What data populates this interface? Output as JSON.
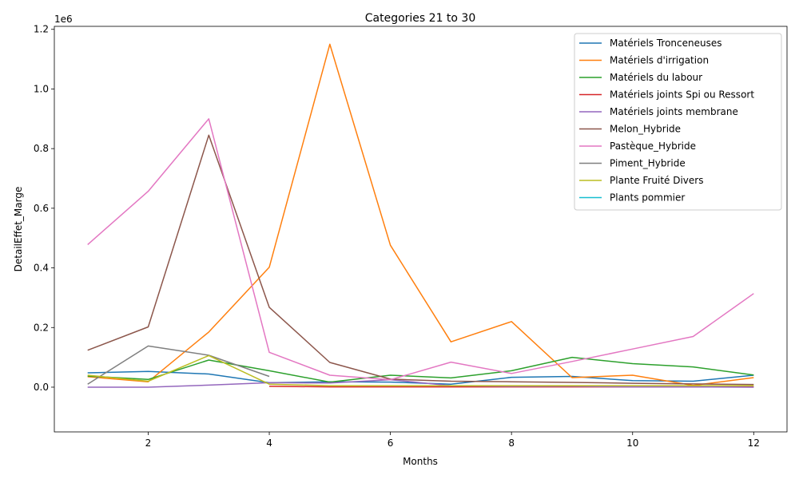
{
  "chart_data": {
    "type": "line",
    "title": "Categories 21 to 30",
    "xlabel": "Months",
    "ylabel": "DetailEffet_Marge",
    "y_offset_text": "1e6",
    "xlim": [
      0.45,
      12.55
    ],
    "ylim": [
      -150000,
      1210000
    ],
    "x_ticks": [
      2,
      4,
      6,
      8,
      10,
      12
    ],
    "y_ticks": [
      0,
      200000,
      400000,
      600000,
      800000,
      1000000,
      1200000
    ],
    "y_tick_labels": [
      "0.0",
      "0.2",
      "0.4",
      "0.6",
      "0.8",
      "1.0",
      "1.2"
    ],
    "legend_position": "top-right",
    "grid": false,
    "series": [
      {
        "name": "Matériels Tronceneuses",
        "color": "#1f77b4",
        "x": [
          1,
          2,
          3,
          4,
          5,
          6,
          7,
          8,
          9,
          10,
          11,
          12
        ],
        "y": [
          48000,
          53000,
          44000,
          15000,
          18000,
          17000,
          10000,
          33000,
          36000,
          22000,
          20000,
          40000
        ]
      },
      {
        "name": "Matériels d'irrigation",
        "color": "#ff7f0e",
        "x": [
          1,
          2,
          3,
          4,
          5,
          6,
          7,
          8,
          9,
          10,
          11,
          12
        ],
        "y": [
          35000,
          18000,
          185000,
          402000,
          1150000,
          476000,
          152000,
          220000,
          32000,
          40000,
          6000,
          32000
        ]
      },
      {
        "name": "Matériels du labour",
        "color": "#2ca02c",
        "x": [
          1,
          2,
          3,
          4,
          5,
          6,
          7,
          8,
          9,
          10,
          11,
          12
        ],
        "y": [
          37000,
          26000,
          91000,
          55000,
          17000,
          40000,
          31000,
          55000,
          100000,
          79000,
          68000,
          41000
        ]
      },
      {
        "name": "Matériels joints Spi ou Ressort",
        "color": "#d62728",
        "x": [
          4,
          5,
          6,
          7,
          8,
          9,
          10,
          11,
          12
        ],
        "y": [
          3000,
          1000,
          1000,
          1000,
          1000,
          1000,
          1000,
          1000,
          1000
        ]
      },
      {
        "name": "Matériels joints membrane",
        "color": "#9467bd",
        "x": [
          1,
          2,
          3,
          4,
          5,
          6,
          7,
          8,
          9,
          10,
          11,
          12
        ],
        "y": [
          0,
          0,
          7000,
          15000,
          14000,
          25000,
          5000,
          3000,
          3000,
          1000,
          1000,
          0
        ]
      },
      {
        "name": "Melon_Hybride",
        "color": "#8c564b",
        "x": [
          1,
          2,
          3,
          4,
          5,
          6,
          7,
          8,
          9,
          10,
          11,
          12
        ],
        "y": [
          124000,
          202000,
          845000,
          268000,
          83000,
          27000,
          20000,
          18000,
          16000,
          13000,
          11000,
          9000
        ]
      },
      {
        "name": "Pastèque_Hybride",
        "color": "#e377c2",
        "x": [
          1,
          2,
          3,
          4,
          5,
          6,
          7,
          8,
          9,
          10,
          11,
          12
        ],
        "y": [
          478000,
          657000,
          900000,
          117000,
          40000,
          25000,
          84000,
          46000,
          86000,
          128000,
          170000,
          314000
        ]
      },
      {
        "name": "Piment_Hybride",
        "color": "#7f7f7f",
        "x": [
          1,
          2,
          3,
          4
        ],
        "y": [
          10000,
          138000,
          107000,
          36000
        ]
      },
      {
        "name": "Plante Fruité Divers",
        "color": "#bcbd22",
        "x": [
          1,
          2,
          3,
          4,
          5,
          6,
          7,
          8,
          9,
          10,
          11,
          12
        ],
        "y": [
          40000,
          20000,
          106000,
          10000,
          5000,
          5000,
          5000,
          5000,
          5000,
          5000,
          5000,
          5000
        ]
      },
      {
        "name": "Plants pommier",
        "color": "#17becf",
        "x": [],
        "y": []
      }
    ]
  }
}
